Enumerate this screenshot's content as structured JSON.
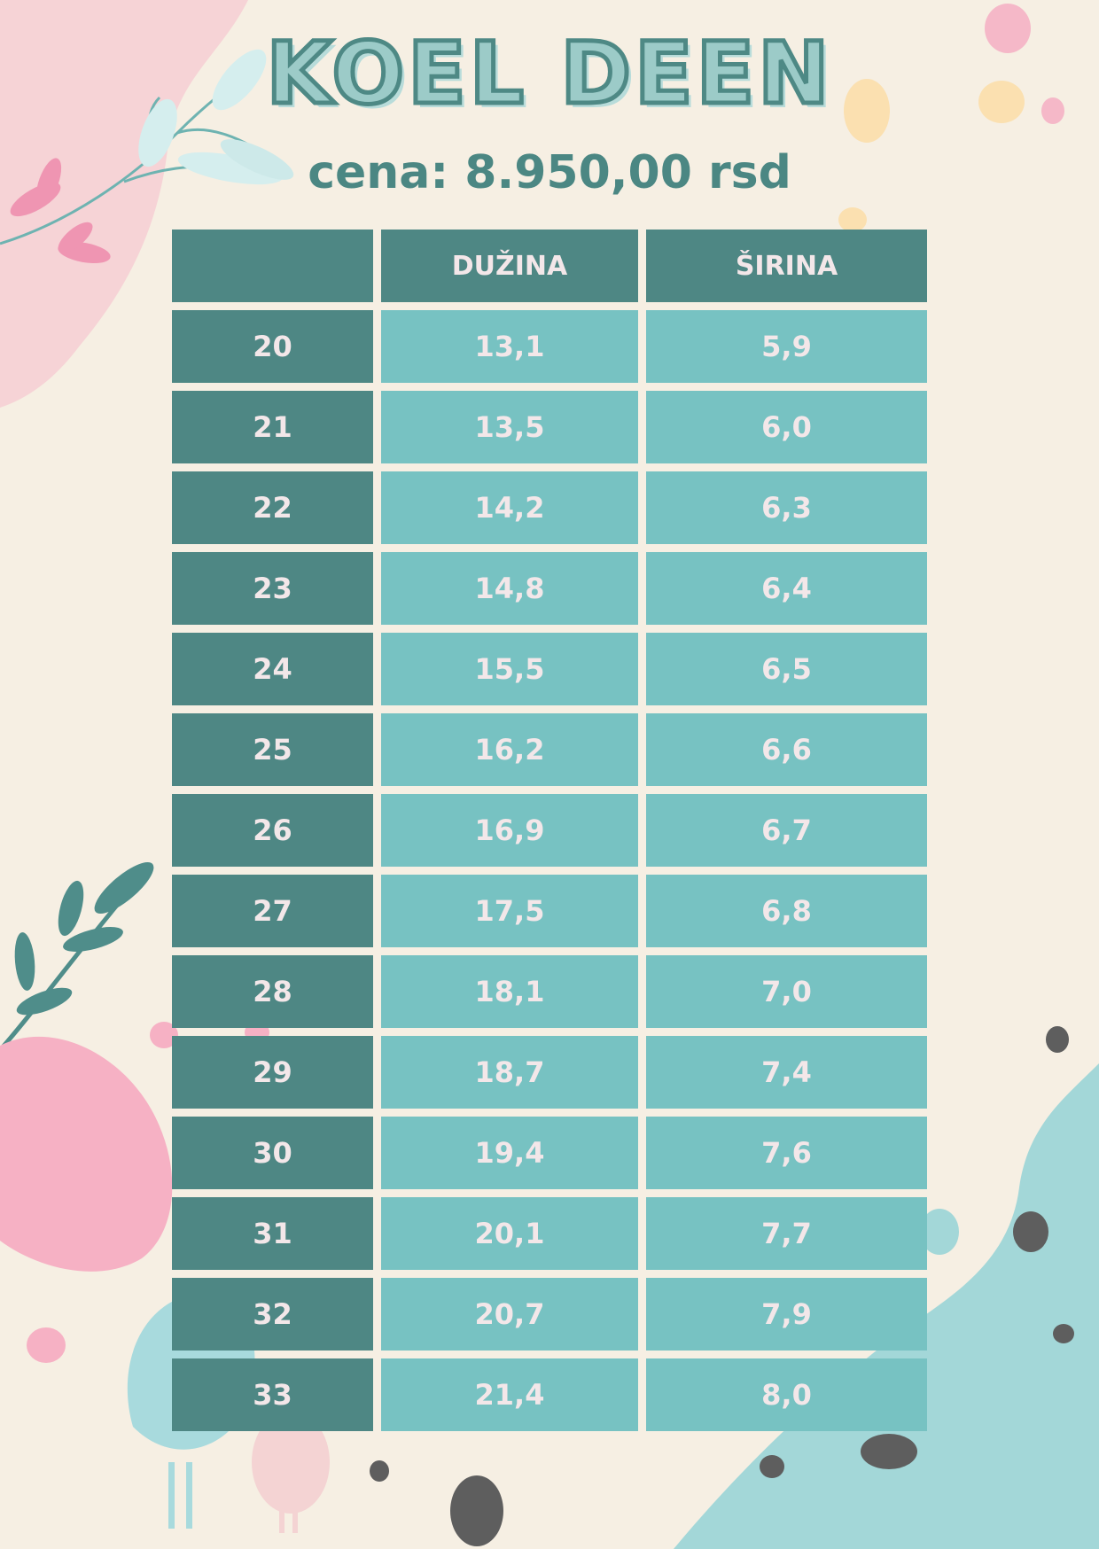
{
  "title": "KOEL DEEN",
  "price": "cena: 8.950,00 rsd",
  "table": {
    "headers": [
      "",
      "DUŽINA",
      "ŠIRINA"
    ],
    "rows": [
      [
        "20",
        "13,1",
        "5,9"
      ],
      [
        "21",
        "13,5",
        "6,0"
      ],
      [
        "22",
        "14,2",
        "6,3"
      ],
      [
        "23",
        "14,8",
        "6,4"
      ],
      [
        "24",
        "15,5",
        "6,5"
      ],
      [
        "25",
        "16,2",
        "6,6"
      ],
      [
        "26",
        "16,9",
        "6,7"
      ],
      [
        "27",
        "17,5",
        "6,8"
      ],
      [
        "28",
        "18,1",
        "7,0"
      ],
      [
        "29",
        "18,7",
        "7,4"
      ],
      [
        "30",
        "19,4",
        "7,6"
      ],
      [
        "31",
        "20,1",
        "7,7"
      ],
      [
        "32",
        "20,7",
        "7,9"
      ],
      [
        "33",
        "21,4",
        "8,0"
      ]
    ]
  },
  "colors": {
    "background": "#f6efe3",
    "dark_teal": "#4e8784",
    "light_teal": "#77c2c2",
    "cell_text": "#f3e7e9",
    "pink": "#f5b6c6"
  }
}
